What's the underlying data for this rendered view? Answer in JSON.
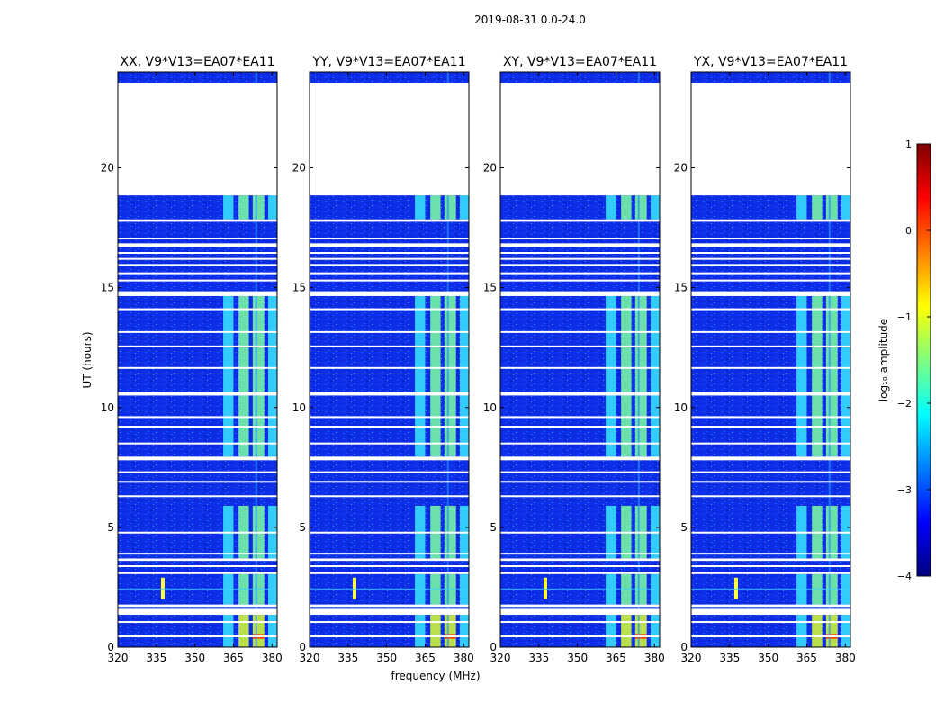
{
  "figure": {
    "suptitle": "2019-08-31 0.0-24.0",
    "ylabel": "UT (hours)",
    "xlabel": "frequency (MHz)"
  },
  "chart_data": {
    "type": "heatmap",
    "title": "2019-08-31 0.0-24.0",
    "panels": [
      {
        "title": "XX, V9*V13=EA07*EA11"
      },
      {
        "title": "YY, V9*V13=EA07*EA11"
      },
      {
        "title": "XY, V9*V13=EA07*EA11"
      },
      {
        "title": "YX, V9*V13=EA07*EA11"
      }
    ],
    "xlabel": "frequency (MHz)",
    "ylabel": "UT (hours)",
    "xlim": [
      320,
      382
    ],
    "ylim": [
      0,
      24
    ],
    "xticks": [
      320,
      335,
      350,
      365,
      380
    ],
    "yticks": [
      0,
      5,
      10,
      15,
      20
    ],
    "no_data_hours": [
      [
        1.35,
        1.6
      ],
      [
        1.68,
        1.78
      ],
      [
        3.05,
        3.15
      ],
      [
        3.6,
        3.7
      ],
      [
        7.8,
        7.95
      ],
      [
        10.5,
        10.65
      ],
      [
        14.65,
        14.85
      ],
      [
        16.7,
        16.85
      ],
      [
        17.75,
        17.85
      ],
      [
        18.85,
        23.55
      ]
    ],
    "flag_lines_hours": [
      0.45,
      1.05,
      3.38,
      3.9,
      4.78,
      6.3,
      6.9,
      7.3,
      8.5,
      9.2,
      9.6,
      11.65,
      12.55,
      13.15,
      14.1,
      15.3,
      15.6,
      15.95,
      16.2,
      16.45,
      17.05
    ],
    "bright_bands_mhz": [
      [
        361,
        365
      ],
      [
        367,
        371
      ],
      [
        372.5,
        377
      ],
      [
        378.5,
        382
      ]
    ],
    "rfi_line_mhz": 373.5,
    "narrow_feature": {
      "freq_mhz": 337.5,
      "hours": [
        2.0,
        2.9
      ]
    },
    "colorbar": {
      "label": "log₁₀ amplitude",
      "range": [
        -4,
        1
      ],
      "ticks": [
        1,
        0,
        -1,
        -2,
        -3,
        -4
      ],
      "tick_labels": [
        "1",
        "0",
        "−1",
        "−2",
        "−3",
        "−4"
      ],
      "colormap": "jet",
      "stops": [
        "#00007f",
        "#0000ff",
        "#007fff",
        "#00ffff",
        "#7fff7f",
        "#ffff00",
        "#ff7f00",
        "#ff0000",
        "#7f0000"
      ]
    }
  }
}
